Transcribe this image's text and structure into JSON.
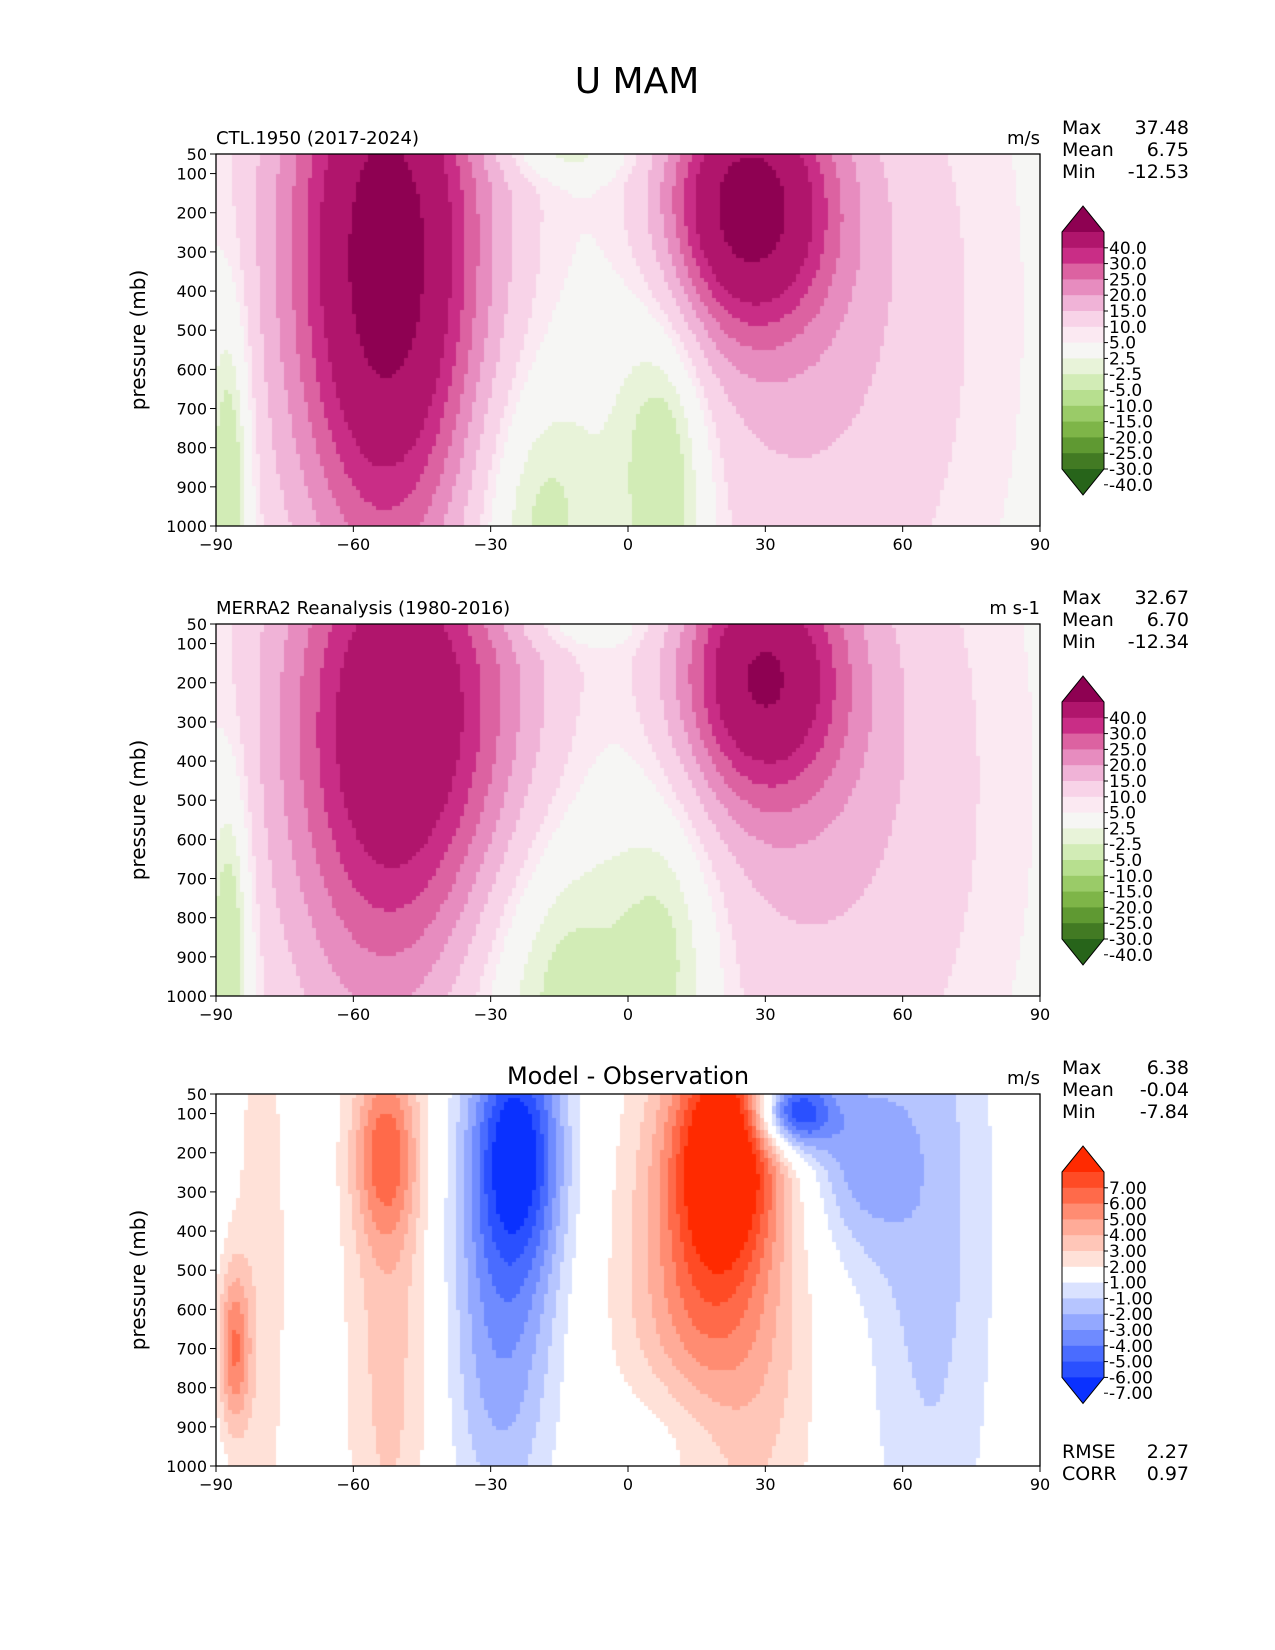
{
  "figure": {
    "title": "U MAM"
  },
  "chart_data": [
    {
      "type": "contour",
      "id": "ctl",
      "title_left": "CTL.1950 (2017-2024)",
      "title_center": "",
      "units": "m/s",
      "ylabel": "pressure (mb)",
      "xlim": [
        -90,
        90
      ],
      "ylim": [
        1000,
        50
      ],
      "x_ticks": [
        "−90",
        "−60",
        "−30",
        "0",
        "30",
        "60",
        "90"
      ],
      "x_tick_values": [
        -90,
        -60,
        -30,
        0,
        30,
        60,
        90
      ],
      "y_ticks": [
        "50",
        "100",
        "200",
        "300",
        "400",
        "500",
        "600",
        "700",
        "800",
        "900",
        "1000"
      ],
      "y_tick_values": [
        50,
        100,
        200,
        300,
        400,
        500,
        600,
        700,
        800,
        900,
        1000
      ],
      "stats": [
        {
          "label": "Max",
          "value": "37.48"
        },
        {
          "label": "Mean",
          "value": "6.75"
        },
        {
          "label": "Min",
          "value": "-12.53"
        }
      ],
      "colorbar": {
        "labels": [
          "40.0",
          "30.0",
          "25.0",
          "20.0",
          "15.0",
          "10.0",
          "5.0",
          "2.5",
          "-2.5",
          "-5.0",
          "-10.0",
          "-15.0",
          "-20.0",
          "-25.0",
          "-30.0",
          "-40.0"
        ],
        "colors": [
          "#8e0152",
          "#b0156c",
          "#c92d86",
          "#dc62a1",
          "#e78cbf",
          "#f0b3d7",
          "#f8d3e8",
          "#fbe9f2",
          "#f6f6f4",
          "#e8f3d9",
          "#d2ecb6",
          "#b7df8f",
          "#9acb68",
          "#7eb548",
          "#5f9932",
          "#427a23",
          "#27641a"
        ]
      },
      "features": [
        {
          "x": -52,
          "p": 250,
          "value": 34
        },
        {
          "x": 27,
          "p": 200,
          "value": 36
        },
        {
          "x": -20,
          "p": 950,
          "value": -8
        },
        {
          "x": 8,
          "p": 900,
          "value": -10
        },
        {
          "x": -88,
          "p": 850,
          "value": -9
        },
        {
          "x": -15,
          "p": 50,
          "value": -4
        }
      ]
    },
    {
      "type": "contour",
      "id": "obs",
      "title_left": "MERRA2 Reanalysis (1980-2016)",
      "title_center": "",
      "units": "m s-1",
      "ylabel": "pressure (mb)",
      "xlim": [
        -90,
        90
      ],
      "ylim": [
        1000,
        50
      ],
      "x_ticks": [
        "−90",
        "−60",
        "−30",
        "0",
        "30",
        "60",
        "90"
      ],
      "x_tick_values": [
        -90,
        -60,
        -30,
        0,
        30,
        60,
        90
      ],
      "y_ticks": [
        "50",
        "100",
        "200",
        "300",
        "400",
        "500",
        "600",
        "700",
        "800",
        "900",
        "1000"
      ],
      "y_tick_values": [
        50,
        100,
        200,
        300,
        400,
        500,
        600,
        700,
        800,
        900,
        1000
      ],
      "stats": [
        {
          "label": "Max",
          "value": "32.67"
        },
        {
          "label": "Mean",
          "value": "6.70"
        },
        {
          "label": "Min",
          "value": "-12.34"
        }
      ],
      "colorbar": {
        "labels": [
          "40.0",
          "30.0",
          "25.0",
          "20.0",
          "15.0",
          "10.0",
          "5.0",
          "2.5",
          "-2.5",
          "-5.0",
          "-10.0",
          "-15.0",
          "-20.0",
          "-25.0",
          "-30.0",
          "-40.0"
        ],
        "colors": [
          "#8e0152",
          "#b0156c",
          "#c92d86",
          "#dc62a1",
          "#e78cbf",
          "#f0b3d7",
          "#f8d3e8",
          "#fbe9f2",
          "#f6f6f4",
          "#e8f3d9",
          "#d2ecb6",
          "#b7df8f",
          "#9acb68",
          "#7eb548",
          "#5f9932",
          "#427a23",
          "#27641a"
        ]
      },
      "features": [
        {
          "x": -48,
          "p": 250,
          "value": 29
        },
        {
          "x": 30,
          "p": 200,
          "value": 32
        },
        {
          "x": -18,
          "p": 950,
          "value": -8
        },
        {
          "x": 10,
          "p": 900,
          "value": -7
        },
        {
          "x": -88,
          "p": 850,
          "value": -12
        }
      ]
    },
    {
      "type": "contour",
      "id": "diff",
      "title_left": "",
      "title_center": "Model - Observation",
      "units": "m/s",
      "ylabel": "pressure (mb)",
      "xlim": [
        -90,
        90
      ],
      "ylim": [
        1000,
        50
      ],
      "x_ticks": [
        "−90",
        "−60",
        "−30",
        "0",
        "30",
        "60",
        "90"
      ],
      "x_tick_values": [
        -90,
        -60,
        -30,
        0,
        30,
        60,
        90
      ],
      "y_ticks": [
        "50",
        "100",
        "200",
        "300",
        "400",
        "500",
        "600",
        "700",
        "800",
        "900",
        "1000"
      ],
      "y_tick_values": [
        50,
        100,
        200,
        300,
        400,
        500,
        600,
        700,
        800,
        900,
        1000
      ],
      "stats": [
        {
          "label": "Max",
          "value": "6.38"
        },
        {
          "label": "Mean",
          "value": "-0.04"
        },
        {
          "label": "Min",
          "value": "-7.84"
        }
      ],
      "metrics": [
        {
          "label": "RMSE",
          "value": "2.27"
        },
        {
          "label": "CORR",
          "value": "0.97"
        }
      ],
      "colorbar": {
        "labels": [
          "7.00",
          "6.00",
          "5.00",
          "4.00",
          "3.00",
          "2.00",
          "1.00",
          "-1.00",
          "-2.00",
          "-3.00",
          "-4.00",
          "-5.00",
          "-6.00",
          "-7.00"
        ],
        "colors": [
          "#ff2a00",
          "#ff4b25",
          "#ff6a4a",
          "#ff8c72",
          "#ffab98",
          "#ffc6b8",
          "#ffe1d8",
          "#ffffff",
          "#dae2ff",
          "#b6c5ff",
          "#93a8ff",
          "#6f8bff",
          "#4a6cff",
          "#2a50ff",
          "#0a31ff"
        ]
      },
      "features": [
        {
          "x": 22,
          "p": 150,
          "value": 6.4
        },
        {
          "x": 36,
          "p": 100,
          "value": -7.8
        },
        {
          "x": -25,
          "p": 150,
          "value": -6
        },
        {
          "x": -53,
          "p": 200,
          "value": 4
        },
        {
          "x": -87,
          "p": 700,
          "value": 4
        },
        {
          "x": 65,
          "p": 250,
          "value": -3
        }
      ]
    }
  ]
}
